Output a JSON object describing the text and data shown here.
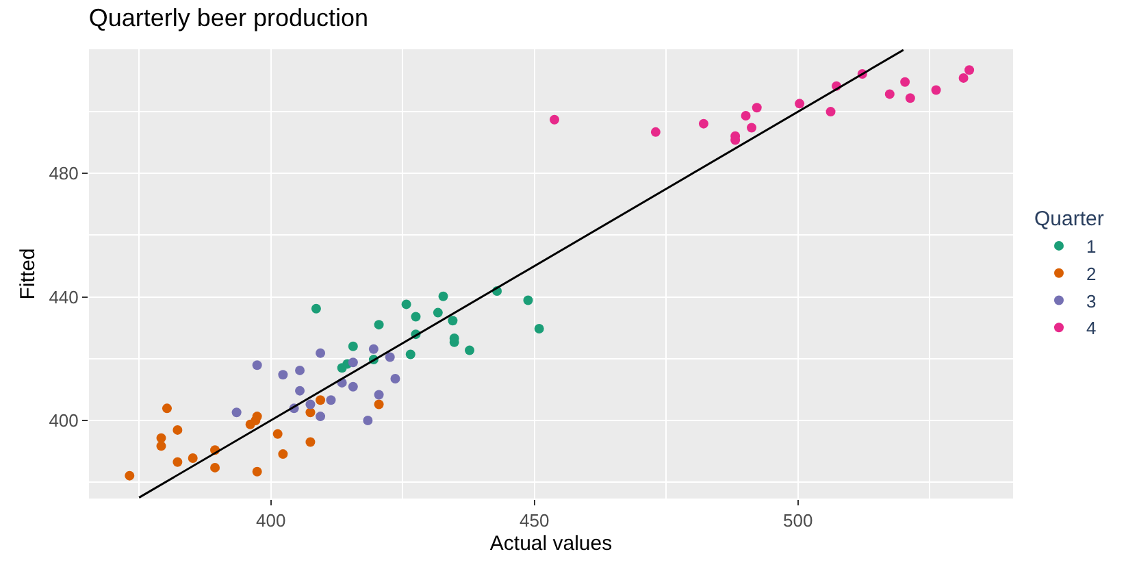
{
  "chart_data": {
    "type": "scatter",
    "title": "Quarterly beer production",
    "xlabel": "Actual values",
    "ylabel": "Fitted",
    "legend_title": "Quarter",
    "xlim": [
      365.5,
      540.8
    ],
    "ylim": [
      374.7,
      520.2
    ],
    "xticks": [
      400,
      450,
      500
    ],
    "yticks": [
      400,
      440,
      480
    ],
    "grid": true,
    "legend": "right",
    "marker": "circle",
    "series": [
      {
        "name": "1",
        "color": "#1b9e77",
        "x": [
          408.6,
          425.7,
          432.7,
          427.5,
          431.7,
          420.5,
          434.5,
          442.9,
          448.8,
          427.5,
          434.8,
          434.8,
          450.9,
          437.7,
          426.5,
          415.6,
          419.5,
          414.5,
          413.5
        ],
        "values": [
          436.2,
          437.6,
          440.2,
          433.6,
          434.9,
          431.0,
          432.3,
          441.9,
          438.9,
          427.9,
          426.6,
          425.3,
          429.7,
          422.7,
          421.4,
          424.0,
          419.7,
          418.3,
          417.0
        ]
      },
      {
        "name": "2",
        "color": "#d95f02",
        "x": [
          380.3,
          382.3,
          379.2,
          379.2,
          382.3,
          385.2,
          389.4,
          389.4,
          373.2,
          397.4,
          396.1,
          397.1,
          397.4,
          401.3,
          402.3,
          407.5,
          409.4,
          407.5,
          420.5
        ],
        "values": [
          403.9,
          396.9,
          394.3,
          391.7,
          386.5,
          387.8,
          390.4,
          384.7,
          382.1,
          401.3,
          398.7,
          400.0,
          383.4,
          395.6,
          389.1,
          393.0,
          406.6,
          402.6,
          405.2
        ]
      },
      {
        "name": "3",
        "color": "#7570b3",
        "x": [
          397.4,
          409.4,
          402.3,
          405.5,
          405.5,
          419.5,
          415.6,
          422.6,
          413.5,
          415.6,
          423.6,
          420.5,
          411.4,
          407.5,
          404.4,
          409.4,
          418.4,
          393.5
        ],
        "values": [
          417.9,
          421.8,
          414.8,
          416.2,
          409.6,
          423.1,
          418.8,
          420.5,
          412.2,
          410.9,
          413.5,
          408.3,
          406.6,
          405.2,
          403.9,
          401.3,
          400.0,
          402.6
        ]
      },
      {
        "name": "4",
        "color": "#e7298a",
        "x": [
          453.8,
          473.0,
          482.1,
          488.1,
          488.1,
          490.1,
          491.2,
          492.2,
          500.3,
          506.2,
          507.3,
          512.2,
          517.4,
          520.3,
          521.3,
          526.2,
          531.4,
          532.5
        ],
        "values": [
          497.4,
          493.4,
          496.1,
          492.1,
          490.8,
          498.7,
          494.8,
          501.3,
          502.6,
          500.0,
          508.3,
          512.2,
          505.7,
          509.6,
          504.4,
          507.0,
          510.9,
          513.5
        ]
      },
      {
        "type": "line",
        "color": "#000000",
        "marker": "none",
        "x": [
          375,
          520
        ],
        "values": [
          375,
          520
        ]
      }
    ]
  }
}
